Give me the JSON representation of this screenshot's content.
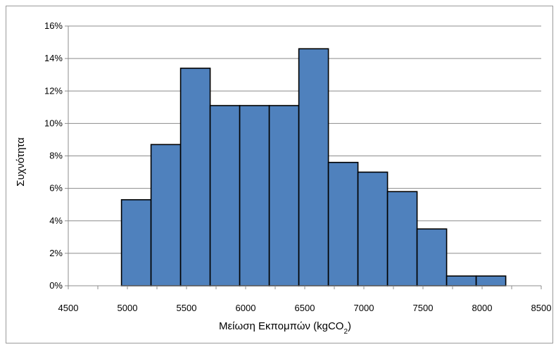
{
  "chart_data": {
    "type": "bar",
    "style": "histogram",
    "xlabel": "Μείωση Εκπομπών (kgCO",
    "xlabel_subscript": "2",
    "xlabel_suffix": ")",
    "ylabel": "Συχνότητα",
    "xlim": [
      4500,
      8500
    ],
    "ylim": [
      0,
      16
    ],
    "x_ticks": [
      4500,
      5000,
      5500,
      6000,
      6500,
      7000,
      7500,
      8000,
      8500
    ],
    "y_ticks": [
      0,
      2,
      4,
      6,
      8,
      10,
      12,
      14,
      16
    ],
    "y_tick_labels": [
      "0%",
      "2%",
      "4%",
      "6%",
      "8%",
      "10%",
      "12%",
      "14%",
      "16%"
    ],
    "grid": true,
    "legend": "none",
    "bar_color": "#4f81bd",
    "bins": [
      {
        "x0": 4950,
        "x1": 5200,
        "value": 5.3
      },
      {
        "x0": 5200,
        "x1": 5450,
        "value": 8.7
      },
      {
        "x0": 5450,
        "x1": 5700,
        "value": 13.4
      },
      {
        "x0": 5700,
        "x1": 5950,
        "value": 11.1
      },
      {
        "x0": 5950,
        "x1": 6200,
        "value": 11.1
      },
      {
        "x0": 6200,
        "x1": 6450,
        "value": 11.1
      },
      {
        "x0": 6450,
        "x1": 6700,
        "value": 14.6
      },
      {
        "x0": 6700,
        "x1": 6950,
        "value": 7.6
      },
      {
        "x0": 6950,
        "x1": 7200,
        "value": 7.0
      },
      {
        "x0": 7200,
        "x1": 7450,
        "value": 5.8
      },
      {
        "x0": 7450,
        "x1": 7700,
        "value": 3.5
      },
      {
        "x0": 7700,
        "x1": 7950,
        "value": 0.6
      },
      {
        "x0": 7950,
        "x1": 8200,
        "value": 0.6
      }
    ]
  }
}
